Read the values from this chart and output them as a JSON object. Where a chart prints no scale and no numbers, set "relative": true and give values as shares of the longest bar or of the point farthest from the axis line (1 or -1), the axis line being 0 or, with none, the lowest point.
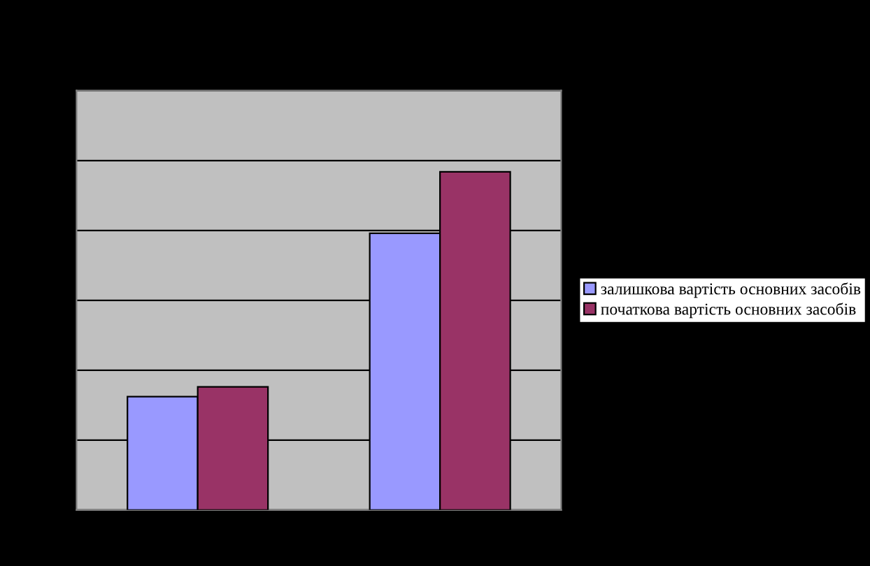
{
  "chart_data": {
    "type": "bar",
    "categories": [
      null,
      null
    ],
    "relative": true,
    "grid": "y",
    "legend": "right",
    "series": [
      {
        "name": "залишкова вартість основних засобів",
        "color": "#9999ff",
        "values": [
          0.335,
          0.818
        ]
      },
      {
        "name": "початкова вартість основних засобів",
        "color": "#993366",
        "values": [
          0.364,
          1
        ]
      }
    ]
  }
}
